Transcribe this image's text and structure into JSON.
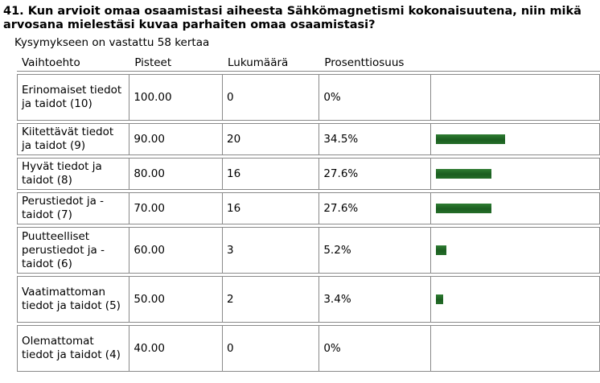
{
  "question": "41. Kun arvioit omaa osaamistasi aiheesta Sähkömagnetismi kokonaisuutena, niin mikä arvosana mielestäsi kuvaa parhaiten omaa osaamistasi?",
  "answered_text": "Kysymykseen on vastattu 58 kertaa",
  "bar_color": "#1f6b23",
  "chart_data": {
    "type": "table",
    "columns": [
      "Vaihtoehto",
      "Pisteet",
      "Lukumäärä",
      "Prosenttiosuus",
      ""
    ],
    "rows": [
      {
        "option": "Erinomaiset tiedot ja taidot (10)",
        "points": "100.00",
        "count": "0",
        "percent": "0%",
        "value": 0
      },
      {
        "option": "Kiitettävät tiedot ja taidot (9)",
        "points": "90.00",
        "count": "20",
        "percent": "34.5%",
        "value": 34.5
      },
      {
        "option": "Hyvät tiedot ja taidot (8)",
        "points": "80.00",
        "count": "16",
        "percent": "27.6%",
        "value": 27.6
      },
      {
        "option": "Perustiedot ja -taidot (7)",
        "points": "70.00",
        "count": "16",
        "percent": "27.6%",
        "value": 27.6
      },
      {
        "option": "Puutteelliset perustiedot ja -taidot (6)",
        "points": "60.00",
        "count": "3",
        "percent": "5.2%",
        "value": 5.2
      },
      {
        "option": "Vaatimattoman tiedot ja taidot (5)",
        "points": "50.00",
        "count": "2",
        "percent": "3.4%",
        "value": 3.4
      },
      {
        "option": "Olemattomat tiedot ja taidot (4)",
        "points": "40.00",
        "count": "0",
        "percent": "0%",
        "value": 0
      }
    ]
  }
}
